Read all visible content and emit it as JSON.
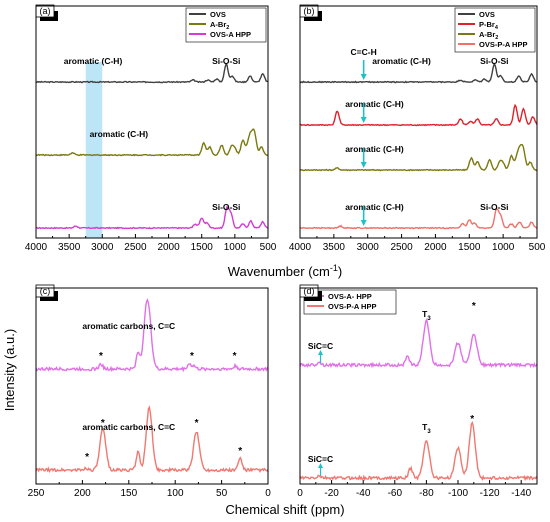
{
  "figure": {
    "top_xlabel": "Wavenumber (cm",
    "top_xlabel_sup": "-1",
    "top_xlabel_end": ")",
    "ylabel": "Intensity (a.u.)",
    "bottom_xlabel": "Chemical shift (ppm)"
  },
  "chart_data": [
    {
      "panel": "(a)",
      "type": "line",
      "title": "",
      "xlabel": "Wavenumber (cm-1)",
      "xlim": [
        4000,
        500
      ],
      "xticks": [
        4000,
        3500,
        3000,
        2500,
        2000,
        1500,
        1000,
        500
      ],
      "highlight_band": [
        3250,
        3000
      ],
      "legend": [
        "OVS",
        "A-Br2",
        "OVS-A HPP"
      ],
      "legend_placement": "top-right",
      "series": [
        {
          "name": "OVS",
          "color": "#404040",
          "offset": 82,
          "peaks": [
            [
              1630,
              2
            ],
            [
              1410,
              2
            ],
            [
              1275,
              3
            ],
            [
              1130,
              18
            ],
            [
              1040,
              6
            ],
            [
              770,
              6
            ],
            [
              580,
              8
            ]
          ]
        },
        {
          "name": "A-Br2",
          "color": "#7a7a10",
          "offset": 155,
          "peaks": [
            [
              3450,
              2
            ],
            [
              1470,
              12
            ],
            [
              1380,
              8
            ],
            [
              1200,
              10
            ],
            [
              1050,
              8
            ],
            [
              1000,
              6
            ],
            [
              880,
              14
            ],
            [
              760,
              22
            ],
            [
              700,
              14
            ],
            [
              600,
              8
            ]
          ]
        },
        {
          "name": "OVS-A HPP",
          "color": "#d23cd2",
          "offset": 228,
          "peaks": [
            [
              3400,
              2
            ],
            [
              1600,
              4
            ],
            [
              1500,
              10
            ],
            [
              1420,
              5
            ],
            [
              1120,
              20
            ],
            [
              1060,
              14
            ],
            [
              880,
              4
            ],
            [
              760,
              7
            ],
            [
              580,
              6
            ]
          ]
        }
      ],
      "annotations": [
        {
          "text": "aromatic (C-H)",
          "x": 3140,
          "series": 0
        },
        {
          "text": "Si-O-Si",
          "x": 1130,
          "series": 0
        },
        {
          "text": "aromatic (C-H)",
          "x": 2750,
          "series": 1
        },
        {
          "text": "Si-O-Si",
          "x": 1130,
          "series": 2
        }
      ]
    },
    {
      "panel": "(b)",
      "type": "line",
      "title": "",
      "xlabel": "Wavenumber (cm-1)",
      "xlim": [
        4000,
        500
      ],
      "xticks": [
        4000,
        3500,
        3000,
        2500,
        2000,
        1500,
        1000,
        500
      ],
      "legend": [
        "OVS",
        "P-Br4",
        "A-Br2",
        "OVS-P-A HPP"
      ],
      "legend_placement": "top-right",
      "series": [
        {
          "name": "OVS",
          "color": "#404040",
          "offset": 82,
          "peaks": [
            [
              1630,
              2
            ],
            [
              1410,
              2
            ],
            [
              1275,
              3
            ],
            [
              1130,
              18
            ],
            [
              1040,
              6
            ],
            [
              770,
              6
            ],
            [
              580,
              8
            ]
          ]
        },
        {
          "name": "P-Br4",
          "color": "#e0202a",
          "offset": 125,
          "peaks": [
            [
              3450,
              14
            ],
            [
              1630,
              6
            ],
            [
              1480,
              4
            ],
            [
              1380,
              6
            ],
            [
              1100,
              6
            ],
            [
              820,
              20
            ],
            [
              700,
              16
            ],
            [
              560,
              8
            ]
          ]
        },
        {
          "name": "A-Br2",
          "color": "#7a7a10",
          "offset": 170,
          "peaks": [
            [
              3450,
              2
            ],
            [
              1470,
              12
            ],
            [
              1380,
              8
            ],
            [
              1200,
              10
            ],
            [
              1050,
              8
            ],
            [
              1000,
              6
            ],
            [
              880,
              14
            ],
            [
              760,
              22
            ],
            [
              700,
              14
            ],
            [
              600,
              8
            ]
          ]
        },
        {
          "name": "OVS-P-A HPP",
          "color": "#f0706a",
          "offset": 228,
          "peaks": [
            [
              3400,
              2
            ],
            [
              1600,
              4
            ],
            [
              1500,
              8
            ],
            [
              1420,
              5
            ],
            [
              1100,
              18
            ],
            [
              1040,
              12
            ],
            [
              880,
              4
            ],
            [
              760,
              6
            ],
            [
              580,
              6
            ]
          ]
        }
      ],
      "annotations": [
        {
          "text": "C=C-H",
          "x": 3060,
          "series": 0
        },
        {
          "text": "aromatic (C-H)",
          "x": 2500,
          "series": 0
        },
        {
          "text": "Si-O-Si",
          "x": 1130,
          "series": 0
        },
        {
          "text": "aromatic (C-H)",
          "x": 2900,
          "series": 1
        },
        {
          "text": "aromatic (C-H)",
          "x": 2900,
          "series": 2
        },
        {
          "text": "aromatic (C-H)",
          "x": 2900,
          "series": 3
        },
        {
          "text": "Si-O-Si",
          "x": 1130,
          "series": 3
        }
      ],
      "arrow_x": 3060
    },
    {
      "panel": "(c)",
      "type": "line",
      "title": "",
      "xlabel": "Chemical shift (ppm)",
      "xlim": [
        250,
        0
      ],
      "xticks": [
        250,
        200,
        150,
        100,
        50,
        0
      ],
      "series": [
        {
          "name": "OVS-A HPP",
          "color": "#e070e8",
          "offset": 369,
          "peaks": [
            [
              180,
              5
            ],
            [
              140,
              16
            ],
            [
              131,
              48
            ],
            [
              128,
              30
            ],
            [
              85,
              5
            ],
            [
              80,
              3
            ],
            [
              35,
              3
            ]
          ]
        },
        {
          "name": "OVS-P-A HPP",
          "color": "#f07870",
          "offset": 470,
          "peaks": [
            [
              196,
              2
            ],
            [
              178,
              40
            ],
            [
              140,
              18
            ],
            [
              128,
              62
            ],
            [
              77,
              38
            ],
            [
              30,
              12
            ]
          ]
        }
      ],
      "annotations": [
        {
          "text": "aromatic carbons, C=C",
          "x": 150,
          "series": 0
        },
        {
          "text": "aromatic carbons, C=C",
          "x": 150,
          "series": 1
        }
      ],
      "stars": [
        {
          "x": 180,
          "series": 0
        },
        {
          "x": 82,
          "series": 0
        },
        {
          "x": 36,
          "series": 0
        },
        {
          "x": 195,
          "series": 1
        },
        {
          "x": 178,
          "series": 1
        },
        {
          "x": 77,
          "series": 1
        },
        {
          "x": 30,
          "series": 1
        }
      ]
    },
    {
      "panel": "(d)",
      "type": "line",
      "title": "",
      "xlabel": "Chemical shift (ppm)",
      "xlim": [
        0,
        -150
      ],
      "xticks": [
        0,
        -20,
        -40,
        -60,
        -80,
        -100,
        -120,
        -140
      ],
      "legend": [
        "OVS-A- HPP",
        "OVS-P-A HPP"
      ],
      "legend_placement": "top-left",
      "series": [
        {
          "name": "OVS-A- HPP",
          "color": "#e070e8",
          "offset": 365,
          "peaks": [
            [
              -12,
              3
            ],
            [
              -68,
              8
            ],
            [
              -80,
              45
            ],
            [
              -100,
              22
            ],
            [
              -110,
              32
            ]
          ]
        },
        {
          "name": "OVS-P-A HPP",
          "color": "#f07870",
          "offset": 478,
          "peaks": [
            [
              -12,
              2
            ],
            [
              -70,
              10
            ],
            [
              -80,
              38
            ],
            [
              -100,
              30
            ],
            [
              -109,
              55
            ]
          ]
        }
      ],
      "annotations": [
        {
          "text": "T",
          "sub": "3",
          "x": -80,
          "series": 0
        },
        {
          "text": "SiC=C",
          "x": -13,
          "series": 0
        },
        {
          "text": "T",
          "sub": "3",
          "x": -80,
          "series": 1
        },
        {
          "text": "SiC=C",
          "x": -13,
          "series": 1
        }
      ],
      "stars": [
        {
          "x": -110,
          "series": 0
        },
        {
          "x": -109,
          "series": 1
        }
      ]
    }
  ]
}
